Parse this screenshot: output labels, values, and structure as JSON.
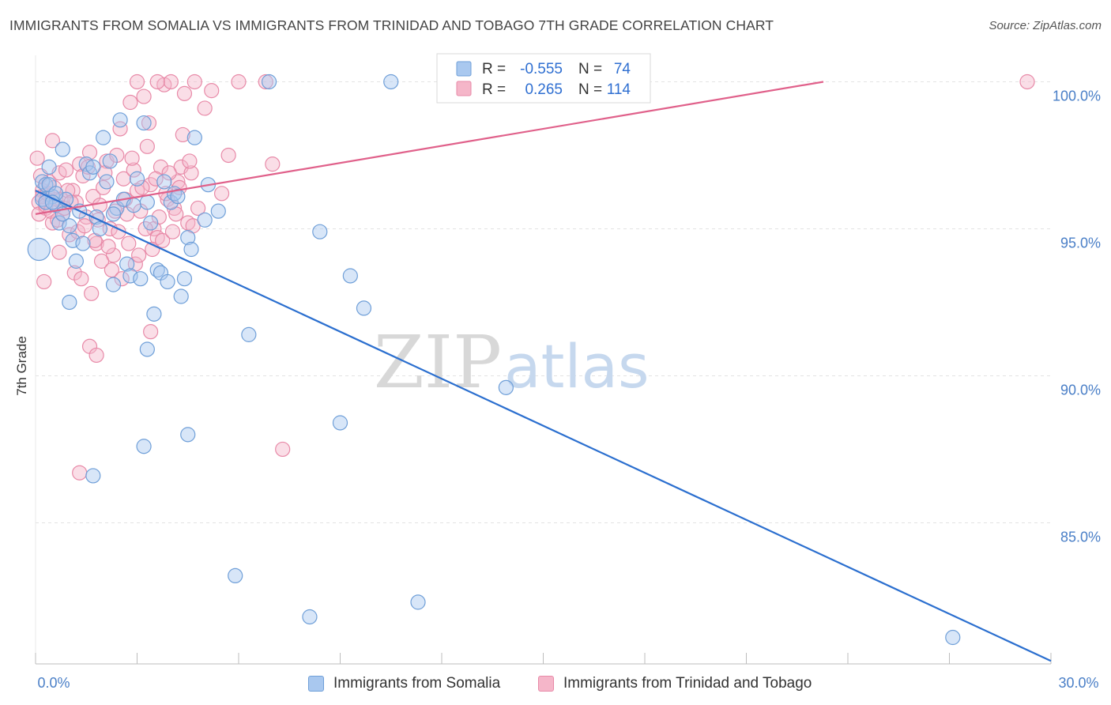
{
  "title": "IMMIGRANTS FROM SOMALIA VS IMMIGRANTS FROM TRINIDAD AND TOBAGO 7TH GRADE CORRELATION CHART",
  "source": "Source: ZipAtlas.com",
  "watermark": {
    "part1": "ZIP",
    "part2": "atlas"
  },
  "colors": {
    "somalia_fill": "#a9c8ef",
    "somalia_stroke": "#6f9fd8",
    "somalia_line": "#2b6fcf",
    "tt_fill": "#f5b6c9",
    "tt_stroke": "#e88aa8",
    "tt_line": "#e0608a",
    "tick_label": "#4a7fc7",
    "grid": "#e3e3e3"
  },
  "chart_data": {
    "type": "scatter",
    "xlabel": "",
    "ylabel": "7th Grade",
    "xlim": [
      0,
      30
    ],
    "ylim": [
      80.2,
      100.9
    ],
    "x_tick_labels": {
      "min": "0.0%",
      "max": "30.0%"
    },
    "y_ticks": [
      {
        "value": 100,
        "label": "100.0%"
      },
      {
        "value": 95,
        "label": "95.0%"
      },
      {
        "value": 90,
        "label": "90.0%"
      },
      {
        "value": 85,
        "label": "85.0%"
      }
    ],
    "grid": true,
    "legend": {
      "placement": "top-center",
      "rows": [
        {
          "r_label": "R =",
          "r_value": "-0.555",
          "n_label": "N =",
          "n_value": "74"
        },
        {
          "r_label": "R =",
          "r_value": "0.265",
          "n_label": "N =",
          "n_value": "114"
        }
      ]
    },
    "series": [
      {
        "name": "Immigrants from Somalia",
        "trend": {
          "x": [
            0,
            30
          ],
          "y": [
            96.3,
            80.3
          ]
        },
        "points": [
          [
            0.2,
            96.6
          ],
          [
            0.4,
            97.1
          ],
          [
            0.3,
            96.5
          ],
          [
            0.5,
            96.1
          ],
          [
            0.6,
            95.8
          ],
          [
            0.7,
            95.2
          ],
          [
            0.8,
            97.7
          ],
          [
            0.9,
            96.0
          ],
          [
            1.0,
            95.1
          ],
          [
            1.1,
            94.6
          ],
          [
            1.2,
            93.9
          ],
          [
            1.3,
            95.6
          ],
          [
            1.4,
            94.5
          ],
          [
            1.5,
            97.2
          ],
          [
            1.6,
            96.9
          ],
          [
            1.7,
            97.1
          ],
          [
            1.8,
            95.4
          ],
          [
            1.9,
            95.0
          ],
          [
            2.0,
            98.1
          ],
          [
            2.1,
            96.6
          ],
          [
            2.2,
            97.3
          ],
          [
            2.3,
            93.1
          ],
          [
            2.4,
            95.7
          ],
          [
            2.5,
            98.7
          ],
          [
            2.6,
            96.0
          ],
          [
            2.7,
            93.8
          ],
          [
            2.8,
            93.4
          ],
          [
            2.9,
            95.8
          ],
          [
            3.0,
            96.7
          ],
          [
            3.1,
            93.3
          ],
          [
            3.2,
            98.6
          ],
          [
            3.3,
            95.9
          ],
          [
            3.4,
            95.2
          ],
          [
            3.5,
            92.1
          ],
          [
            3.6,
            93.6
          ],
          [
            3.7,
            93.5
          ],
          [
            3.8,
            96.6
          ],
          [
            3.9,
            93.2
          ],
          [
            4.0,
            95.9
          ],
          [
            4.1,
            96.2
          ],
          [
            4.3,
            92.7
          ],
          [
            4.4,
            93.3
          ],
          [
            4.5,
            94.7
          ],
          [
            4.6,
            94.3
          ],
          [
            4.7,
            98.1
          ],
          [
            4.2,
            96.1
          ],
          [
            5.0,
            95.3
          ],
          [
            5.1,
            96.5
          ],
          [
            5.4,
            95.6
          ],
          [
            6.3,
            91.4
          ],
          [
            6.9,
            100.0
          ],
          [
            8.4,
            94.9
          ],
          [
            9.3,
            93.4
          ],
          [
            9.7,
            92.3
          ],
          [
            10.5,
            100.0
          ],
          [
            13.9,
            89.6
          ],
          [
            3.2,
            87.6
          ],
          [
            4.5,
            88.0
          ],
          [
            9.0,
            88.4
          ],
          [
            1.7,
            86.6
          ],
          [
            5.9,
            83.2
          ],
          [
            8.1,
            81.8
          ],
          [
            11.3,
            82.3
          ],
          [
            27.1,
            81.1
          ],
          [
            0.1,
            94.3
          ],
          [
            0.2,
            96.0
          ],
          [
            0.3,
            95.9
          ],
          [
            0.4,
            96.5
          ],
          [
            0.6,
            96.2
          ],
          [
            1.0,
            92.5
          ],
          [
            2.3,
            95.5
          ],
          [
            3.3,
            90.9
          ],
          [
            0.5,
            95.9
          ],
          [
            0.8,
            95.5
          ]
        ]
      },
      {
        "name": "Immigrants from Trinidad and Tobago",
        "trend": {
          "x": [
            0,
            30
          ],
          "y": [
            95.5,
            101.3
          ]
        },
        "points": [
          [
            0.1,
            95.9
          ],
          [
            0.2,
            96.3
          ],
          [
            0.3,
            95.7
          ],
          [
            0.4,
            96.6
          ],
          [
            0.5,
            95.2
          ],
          [
            0.6,
            96.0
          ],
          [
            0.7,
            96.9
          ],
          [
            0.8,
            95.5
          ],
          [
            0.9,
            97.0
          ],
          [
            1.0,
            94.8
          ],
          [
            1.1,
            96.3
          ],
          [
            1.2,
            95.9
          ],
          [
            1.3,
            97.2
          ],
          [
            1.4,
            96.8
          ],
          [
            1.5,
            95.4
          ],
          [
            1.6,
            97.6
          ],
          [
            1.7,
            96.1
          ],
          [
            1.8,
            94.5
          ],
          [
            1.9,
            95.8
          ],
          [
            2.0,
            96.4
          ],
          [
            2.1,
            97.3
          ],
          [
            2.2,
            95.0
          ],
          [
            2.3,
            94.1
          ],
          [
            2.4,
            97.5
          ],
          [
            2.5,
            98.4
          ],
          [
            2.6,
            96.7
          ],
          [
            2.7,
            95.5
          ],
          [
            2.8,
            99.3
          ],
          [
            2.9,
            97.0
          ],
          [
            3.0,
            96.3
          ],
          [
            3.1,
            95.6
          ],
          [
            3.2,
            99.5
          ],
          [
            3.3,
            97.8
          ],
          [
            3.4,
            96.5
          ],
          [
            3.5,
            95.0
          ],
          [
            3.6,
            94.7
          ],
          [
            3.7,
            97.1
          ],
          [
            3.8,
            99.9
          ],
          [
            3.9,
            96.0
          ],
          [
            4.0,
            100.0
          ],
          [
            4.1,
            95.7
          ],
          [
            4.2,
            96.6
          ],
          [
            4.3,
            97.1
          ],
          [
            4.4,
            99.6
          ],
          [
            4.5,
            95.2
          ],
          [
            4.6,
            96.9
          ],
          [
            4.7,
            100.0
          ],
          [
            4.8,
            95.7
          ],
          [
            5.0,
            99.1
          ],
          [
            5.2,
            99.7
          ],
          [
            5.5,
            96.2
          ],
          [
            5.7,
            97.5
          ],
          [
            6.0,
            100.0
          ],
          [
            6.8,
            100.0
          ],
          [
            7.0,
            97.2
          ],
          [
            7.3,
            87.5
          ],
          [
            29.3,
            100.0
          ],
          [
            3.0,
            100.0
          ],
          [
            3.6,
            100.0
          ],
          [
            1.6,
            91.0
          ],
          [
            1.8,
            90.7
          ],
          [
            1.3,
            86.7
          ],
          [
            3.4,
            91.5
          ],
          [
            0.1,
            95.5
          ],
          [
            0.2,
            96.1
          ],
          [
            0.3,
            95.8
          ],
          [
            0.35,
            96.2
          ],
          [
            0.45,
            95.6
          ],
          [
            0.55,
            96.4
          ],
          [
            0.65,
            95.3
          ],
          [
            0.75,
            96.0
          ],
          [
            0.85,
            95.7
          ],
          [
            0.95,
            96.3
          ],
          [
            1.05,
            95.9
          ],
          [
            1.15,
            93.5
          ],
          [
            1.25,
            94.9
          ],
          [
            1.35,
            93.3
          ],
          [
            1.45,
            95.1
          ],
          [
            1.55,
            97.1
          ],
          [
            1.65,
            92.8
          ],
          [
            1.75,
            94.6
          ],
          [
            1.85,
            95.3
          ],
          [
            1.95,
            93.9
          ],
          [
            2.05,
            96.9
          ],
          [
            2.15,
            94.4
          ],
          [
            2.25,
            93.6
          ],
          [
            2.35,
            95.6
          ],
          [
            2.45,
            94.9
          ],
          [
            2.55,
            93.3
          ],
          [
            2.65,
            96.0
          ],
          [
            2.75,
            94.5
          ],
          [
            2.85,
            97.4
          ],
          [
            2.95,
            93.8
          ],
          [
            3.05,
            94.1
          ],
          [
            3.15,
            96.4
          ],
          [
            3.25,
            95.0
          ],
          [
            3.35,
            98.6
          ],
          [
            3.45,
            94.3
          ],
          [
            3.55,
            96.7
          ],
          [
            3.65,
            95.4
          ],
          [
            3.75,
            94.6
          ],
          [
            3.85,
            96.2
          ],
          [
            3.95,
            96.9
          ],
          [
            4.05,
            94.9
          ],
          [
            4.15,
            95.5
          ],
          [
            4.25,
            96.4
          ],
          [
            4.35,
            98.2
          ],
          [
            4.55,
            97.3
          ],
          [
            4.65,
            95.1
          ],
          [
            0.05,
            97.4
          ],
          [
            0.15,
            96.8
          ],
          [
            0.25,
            93.2
          ],
          [
            0.5,
            98.0
          ],
          [
            0.7,
            94.2
          ]
        ]
      }
    ]
  }
}
